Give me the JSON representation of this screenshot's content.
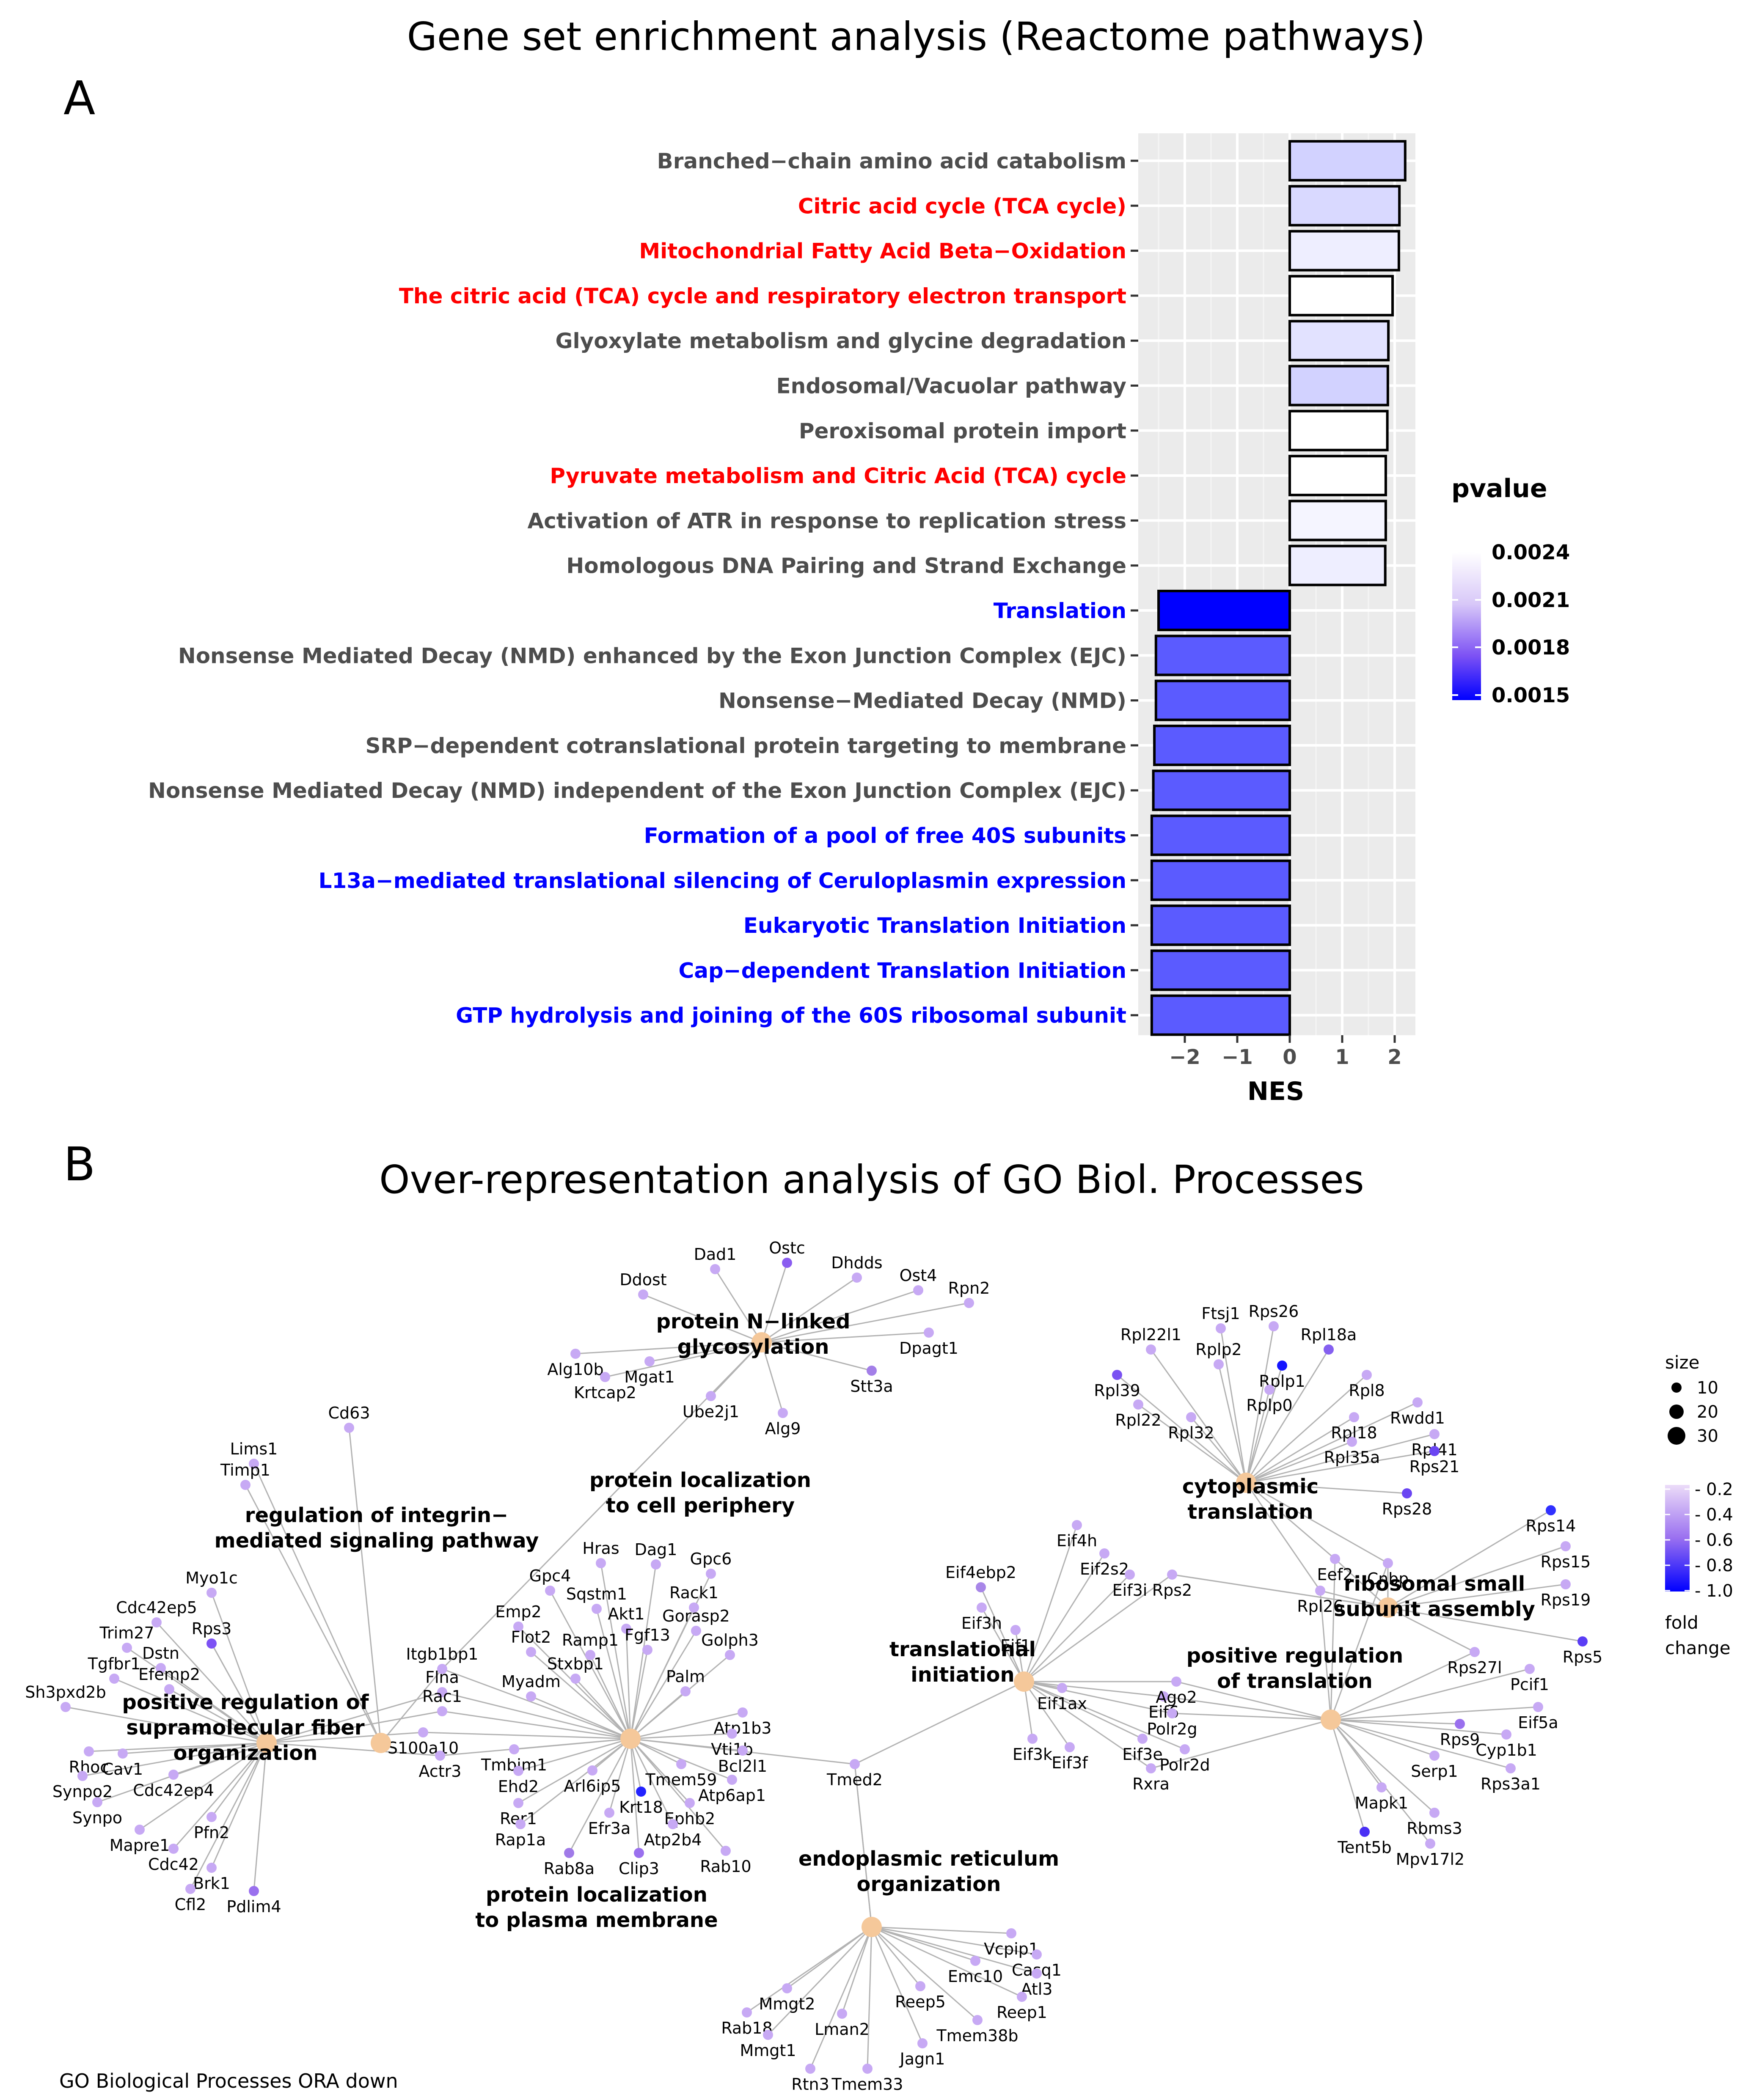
{
  "panels": [
    {
      "label": "A"
    },
    {
      "label": "B"
    }
  ],
  "chart_data": [
    {
      "type": "bar",
      "orientation": "horizontal",
      "title": "Gene set enrichment analysis (Reactome pathways)",
      "xlabel": "NES",
      "ylabel": "",
      "xlim": [
        -2.6,
        2.4
      ],
      "xticks": [
        -2,
        -1,
        0,
        1,
        2
      ],
      "grid": true,
      "legend": {
        "title": "pvalue",
        "position": "right",
        "type": "colorbar",
        "ticks": [
          "0.0024",
          "0.0021",
          "0.0018",
          "0.0015"
        ],
        "range": [
          0.0015,
          0.0024
        ],
        "colors": {
          "low": "#0000ff",
          "high": "#ffffff"
        }
      },
      "label_colors": {
        "gray": "#4d4d4d",
        "red": "#ff0000",
        "blue": "#0000ff"
      },
      "categories": [
        {
          "label": "Branched−chain amino acid catabolism",
          "nes": 2.2,
          "pvalue": 0.00215,
          "label_color": "gray"
        },
        {
          "label": "Citric acid cycle (TCA cycle)",
          "nes": 2.09,
          "pvalue": 0.00218,
          "label_color": "red"
        },
        {
          "label": "Mitochondrial Fatty Acid Beta−Oxidation",
          "nes": 2.08,
          "pvalue": 0.00228,
          "label_color": "red"
        },
        {
          "label": "The citric acid (TCA) cycle and respiratory electron transport",
          "nes": 1.96,
          "pvalue": 0.0024,
          "label_color": "red"
        },
        {
          "label": "Glyoxylate metabolism and glycine degradation",
          "nes": 1.88,
          "pvalue": 0.00222,
          "label_color": "gray"
        },
        {
          "label": "Endosomal/Vacuolar pathway",
          "nes": 1.87,
          "pvalue": 0.00215,
          "label_color": "gray"
        },
        {
          "label": "Peroxisomal protein import",
          "nes": 1.86,
          "pvalue": 0.0024,
          "label_color": "gray"
        },
        {
          "label": "Pyruvate metabolism and Citric Acid (TCA) cycle",
          "nes": 1.83,
          "pvalue": 0.0024,
          "label_color": "red"
        },
        {
          "label": "Activation of ATR in response to replication stress",
          "nes": 1.83,
          "pvalue": 0.00232,
          "label_color": "gray"
        },
        {
          "label": "Homologous DNA Pairing and Strand Exchange",
          "nes": 1.82,
          "pvalue": 0.00228,
          "label_color": "gray"
        },
        {
          "label": "Translation",
          "nes": -2.5,
          "pvalue": 0.00148,
          "label_color": "blue"
        },
        {
          "label": "Nonsense Mediated Decay (NMD) enhanced by the Exon Junction Complex (EJC)",
          "nes": -2.55,
          "pvalue": 0.00175,
          "label_color": "gray"
        },
        {
          "label": "Nonsense−Mediated Decay (NMD)",
          "nes": -2.55,
          "pvalue": 0.00175,
          "label_color": "gray"
        },
        {
          "label": "SRP−dependent cotranslational protein targeting to membrane",
          "nes": -2.58,
          "pvalue": 0.00175,
          "label_color": "gray"
        },
        {
          "label": "Nonsense Mediated Decay (NMD) independent of the Exon Junction Complex (EJC)",
          "nes": -2.6,
          "pvalue": 0.00175,
          "label_color": "gray"
        },
        {
          "label": "Formation of a pool of free 40S subunits",
          "nes": -2.63,
          "pvalue": 0.00175,
          "label_color": "blue"
        },
        {
          "label": "L13a−mediated translational silencing of Ceruloplasmin expression",
          "nes": -2.63,
          "pvalue": 0.00175,
          "label_color": "blue"
        },
        {
          "label": "Eukaryotic Translation Initiation",
          "nes": -2.63,
          "pvalue": 0.00175,
          "label_color": "blue"
        },
        {
          "label": "Cap−dependent Translation Initiation",
          "nes": -2.63,
          "pvalue": 0.00175,
          "label_color": "blue"
        },
        {
          "label": "GTP hydrolysis and joining of the 60S ribosomal subunit",
          "nes": -2.63,
          "pvalue": 0.00175,
          "label_color": "blue"
        }
      ]
    },
    {
      "type": "network",
      "title": "Over-representation analysis of GO Biol. Processes",
      "caption": "GO Biological Processes ORA down",
      "node_color_category": "#f5c89a",
      "edge_color": "#b3b3b3",
      "legend_size": {
        "title": "size",
        "ticks": [
          "10",
          "20",
          "30"
        ]
      },
      "legend_fold": {
        "title": "fold\nchange",
        "ticks": [
          "0.2",
          "0.4",
          "0.6",
          "0.8",
          "1.0"
        ],
        "colors": {
          "low": "#e6d9f7",
          "high": "#0000ff"
        }
      },
      "categories": [
        {
          "label": "protein N−linked\nglycosylation",
          "genes": [
            "Dad1",
            "Ostc",
            "Dhdds",
            "Ddost",
            "Ost4",
            "Rpn2",
            "Dpagt1",
            "Alg10b",
            "Mgat1",
            "Stt3a",
            "Krtcap2",
            "Ube2j1",
            "Alg9"
          ]
        },
        {
          "label": "regulation of integrin−\nmediated signaling pathway",
          "genes": [
            "Cd63",
            "Lims1",
            "Timp1",
            "Itgb1bp1"
          ]
        },
        {
          "label": "positive regulation of\nsupramolecular fiber\norganization",
          "genes": [
            "Myo1c",
            "Cdc42ep5",
            "Rps3",
            "Trim27",
            "Dstn",
            "Tgfbr1",
            "Efemp2",
            "Sh3pxd2b",
            "Rhoc",
            "Cav1",
            "Synpo2",
            "Cdc42ep4",
            "Synpo",
            "Pfn2",
            "Mapre1",
            "Cdc42",
            "Brk1",
            "Cfl2",
            "Pdlim4",
            "Flna",
            "Rac1",
            "S100a10",
            "Actr3"
          ]
        },
        {
          "label": "protein localization\nto cell periphery",
          "genes": []
        },
        {
          "label": "protein localization\nto plasma membrane",
          "genes": [
            "Hras",
            "Dag1",
            "Gpc6",
            "Gpc4",
            "Sqstm1",
            "Rack1",
            "Akt1",
            "Emp2",
            "Gorasp2",
            "Fgf13",
            "Golph3",
            "Flot2",
            "Ramp1",
            "Stxbp1",
            "Palm",
            "Myadm",
            "Atp1b3",
            "Vti1b",
            "Bcl2l1",
            "Tmbim1",
            "Tmem59",
            "Ehd2",
            "Arl6ip5",
            "Atp6ap1",
            "Krt18",
            "Ephb2",
            "Rer1",
            "Efr3a",
            "Rap1a",
            "Atp2b4",
            "Rab8a",
            "Clip3",
            "Rab10"
          ]
        },
        {
          "label": "endoplasmic reticulum\norganization",
          "genes": [
            "Tmed2",
            "Vcpip1",
            "Casq1",
            "Emc10",
            "Atl3",
            "Reep5",
            "Reep1",
            "Mmgt2",
            "Lman2",
            "Tmem38b",
            "Rab18",
            "Mmgt1",
            "Jagn1",
            "Rtn3",
            "Tmem33"
          ]
        },
        {
          "label": "translational\ninitiation",
          "genes": [
            "Eif4h",
            "Eif2s2",
            "Eif4ebp2",
            "Eif3i",
            "Eif3h",
            "Eif1",
            "Eif1ax",
            "Eif6",
            "Eif3k",
            "Eif3f",
            "Eif3e",
            "Rxra",
            "Polr2d",
            "Polr2g",
            "Ago2"
          ]
        },
        {
          "label": "cytoplasmic\ntranslation",
          "genes": [
            "Ftsj1",
            "Rps26",
            "Rpl22l1",
            "Rplp2",
            "Rpl18a",
            "Rpl39",
            "Rplp1",
            "Rpl8",
            "Rplp0",
            "Rpl22",
            "Rwdd1",
            "Rpl32",
            "Rpl18",
            "Rpl35a",
            "Rpl41",
            "Rps21",
            "Rps28"
          ]
        },
        {
          "label": "ribosomal small\nsubunit assembly",
          "genes": [
            "Rps14",
            "Rps15",
            "Rps19",
            "Rps5",
            "Rps27l",
            "Eef2",
            "Cnbp",
            "Rpl26",
            "Rps2"
          ]
        },
        {
          "label": "positive regulation\nof translation",
          "genes": [
            "Pcif1",
            "Eif5a",
            "Rps9",
            "Cyp1b1",
            "Serp1",
            "Rps3a1",
            "Mapk1",
            "Rbms3",
            "Tent5b",
            "Mpv17l2"
          ]
        }
      ]
    }
  ]
}
